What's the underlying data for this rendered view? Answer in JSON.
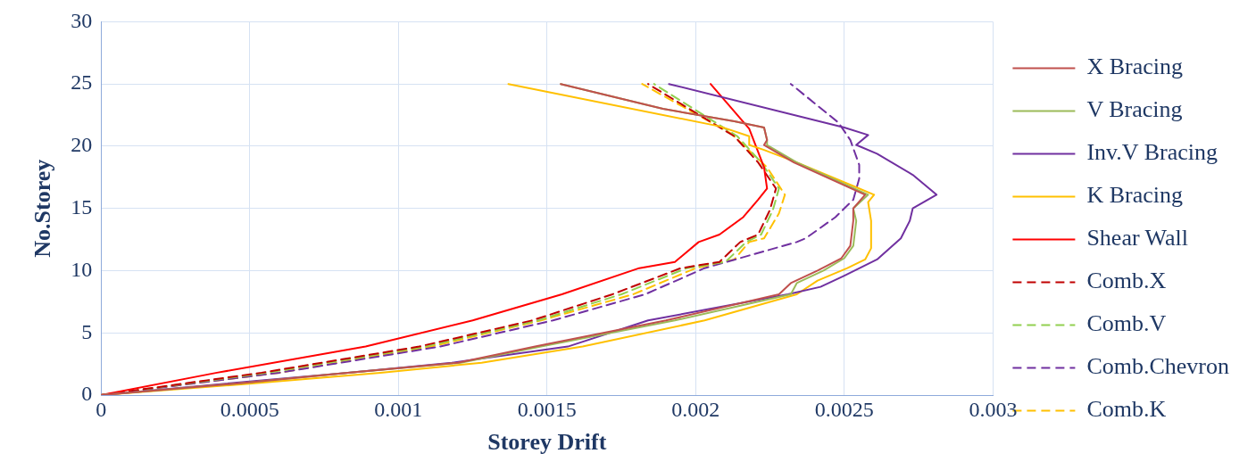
{
  "chart_data": {
    "type": "line",
    "xlabel": "Storey Drift",
    "ylabel": "No.Storey",
    "xlim": [
      0,
      0.003
    ],
    "xticks": [
      0,
      0.0005,
      0.001,
      0.0015,
      0.002,
      0.0025,
      0.003
    ],
    "ylim": [
      0,
      30
    ],
    "yticks": [
      0,
      5,
      10,
      15,
      20,
      25,
      30
    ],
    "grid": true,
    "legend": "right",
    "marker": "none",
    "series": [
      {
        "name": "X Bracing",
        "color": "#c0504d",
        "line_style": "solid",
        "x": [
          0,
          0.00049,
          0.00083,
          0.0012,
          0.00146,
          0.0019,
          0.00228,
          0.00232,
          0.00241,
          0.00249,
          0.00252,
          0.00253,
          0.00253,
          0.00257,
          0.00233,
          0.00223,
          0.00224,
          0.00223,
          0.00213,
          0.00189,
          0.001546
        ],
        "values": [
          0,
          1,
          1.8,
          2.6,
          3.9,
          6,
          8.1,
          9,
          10,
          11,
          12,
          14,
          15,
          16.1,
          18.7,
          20.1,
          20.5,
          21.5,
          22,
          23,
          25
        ]
      },
      {
        "name": "V Bracing",
        "color": "#9bbb59",
        "line_style": "solid",
        "x": [
          0,
          0.00049,
          0.00083,
          0.00121,
          0.00148,
          0.00193,
          0.00232,
          0.00234,
          0.00243,
          0.0025,
          0.00253,
          0.00254,
          0.00253,
          0.00258,
          0.00234,
          0.00224,
          0.00224,
          0.00223,
          0.00213,
          0.00189,
          0.001546
        ],
        "values": [
          0,
          1,
          1.8,
          2.6,
          3.9,
          6,
          8.1,
          9,
          10,
          11,
          12,
          14,
          15,
          16.1,
          18.7,
          20.1,
          20.5,
          21.5,
          22,
          23,
          25
        ]
      },
      {
        "name": "Inv.V Bracing",
        "color": "#7030a0",
        "line_style": "solid",
        "x": [
          0,
          0.00041,
          0.00083,
          0.00118,
          0.00157,
          0.00184,
          0.00231,
          0.00242,
          0.0025,
          0.00261,
          0.00269,
          0.00272,
          0.00273,
          0.00281,
          0.00273,
          0.00261,
          0.00254,
          0.00258,
          0.0025,
          0.00191
        ],
        "values": [
          0,
          0.9,
          1.8,
          2.6,
          3.9,
          6,
          8.1,
          8.7,
          9.6,
          10.9,
          12.6,
          14,
          15,
          16.1,
          17.7,
          19.4,
          20.1,
          20.9,
          21.5,
          25
        ]
      },
      {
        "name": "K Bracing",
        "color": "#ffc000",
        "line_style": "solid",
        "x": [
          0,
          0.00049,
          0.00094,
          0.00128,
          0.00162,
          0.00203,
          0.00234,
          0.00241,
          0.00251,
          0.00257,
          0.00259,
          0.00259,
          0.00258,
          0.0026,
          0.00254,
          0.00234,
          0.00223,
          0.00218,
          0.00218,
          0.00208,
          0.00137
        ],
        "values": [
          0,
          0.9,
          1.8,
          2.6,
          3.9,
          6,
          8.1,
          9.2,
          10.2,
          10.9,
          11.8,
          14,
          15.5,
          16.1,
          16.7,
          18.7,
          19.7,
          20.1,
          20.8,
          21.6,
          25
        ]
      },
      {
        "name": "Shear Wall",
        "color": "#ff0000",
        "line_style": "solid",
        "x": [
          0,
          0.00039,
          0.00089,
          0.00125,
          0.00155,
          0.00181,
          0.00193,
          0.00201,
          0.00208,
          0.00216,
          0.00221,
          0.00224,
          0.00223,
          0.00218,
          0.00205
        ],
        "values": [
          0,
          1.8,
          3.9,
          6,
          8.1,
          10.2,
          10.7,
          12.3,
          12.9,
          14.3,
          15.7,
          16.6,
          18.3,
          21.4,
          25
        ]
      },
      {
        "name": "Comb.X",
        "color": "#c00000",
        "line_style": "dashed",
        "x": [
          0,
          0.00054,
          0.00107,
          0.00145,
          0.00172,
          0.00195,
          0.00208,
          0.00215,
          0.00221,
          0.00225,
          0.00227,
          0.00221,
          0.00213,
          0.00184
        ],
        "values": [
          0,
          1.8,
          3.9,
          6,
          8.1,
          10.2,
          10.7,
          12.3,
          12.9,
          14.9,
          16.6,
          18.7,
          20.8,
          25
        ]
      },
      {
        "name": "Comb.V",
        "color": "#92d050",
        "line_style": "dashed",
        "x": [
          0,
          0.00056,
          0.00109,
          0.00147,
          0.00175,
          0.00197,
          0.0021,
          0.00217,
          0.00222,
          0.00226,
          0.00228,
          0.00222,
          0.00214,
          0.00186
        ],
        "values": [
          0,
          1.8,
          3.9,
          6,
          8.1,
          10.2,
          10.7,
          12.3,
          12.9,
          14.9,
          16.6,
          18.7,
          20.8,
          25
        ]
      },
      {
        "name": "Comb.Chevron",
        "color": "#7030a0",
        "line_style": "dashed",
        "x": [
          0,
          0.0006,
          0.00114,
          0.00152,
          0.00183,
          0.00203,
          0.00234,
          0.00237,
          0.00247,
          0.00253,
          0.00255,
          0.00255,
          0.00252,
          0.00248,
          0.00232
        ],
        "values": [
          0,
          1.8,
          3.9,
          6,
          8.1,
          10.2,
          12.3,
          12.6,
          14.3,
          15.7,
          17.4,
          18.5,
          20.5,
          21.9,
          25
        ]
      },
      {
        "name": "Comb.K",
        "color": "#ffc000",
        "line_style": "dashed",
        "x": [
          0,
          0.0006,
          0.00111,
          0.00148,
          0.00179,
          0.002,
          0.00213,
          0.00218,
          0.00223,
          0.00228,
          0.0023,
          0.00224,
          0.00212,
          0.00182
        ],
        "values": [
          0,
          1.8,
          3.9,
          6,
          8.1,
          10.2,
          10.9,
          12.3,
          12.6,
          14.6,
          16.1,
          18.3,
          21,
          25
        ]
      }
    ]
  }
}
